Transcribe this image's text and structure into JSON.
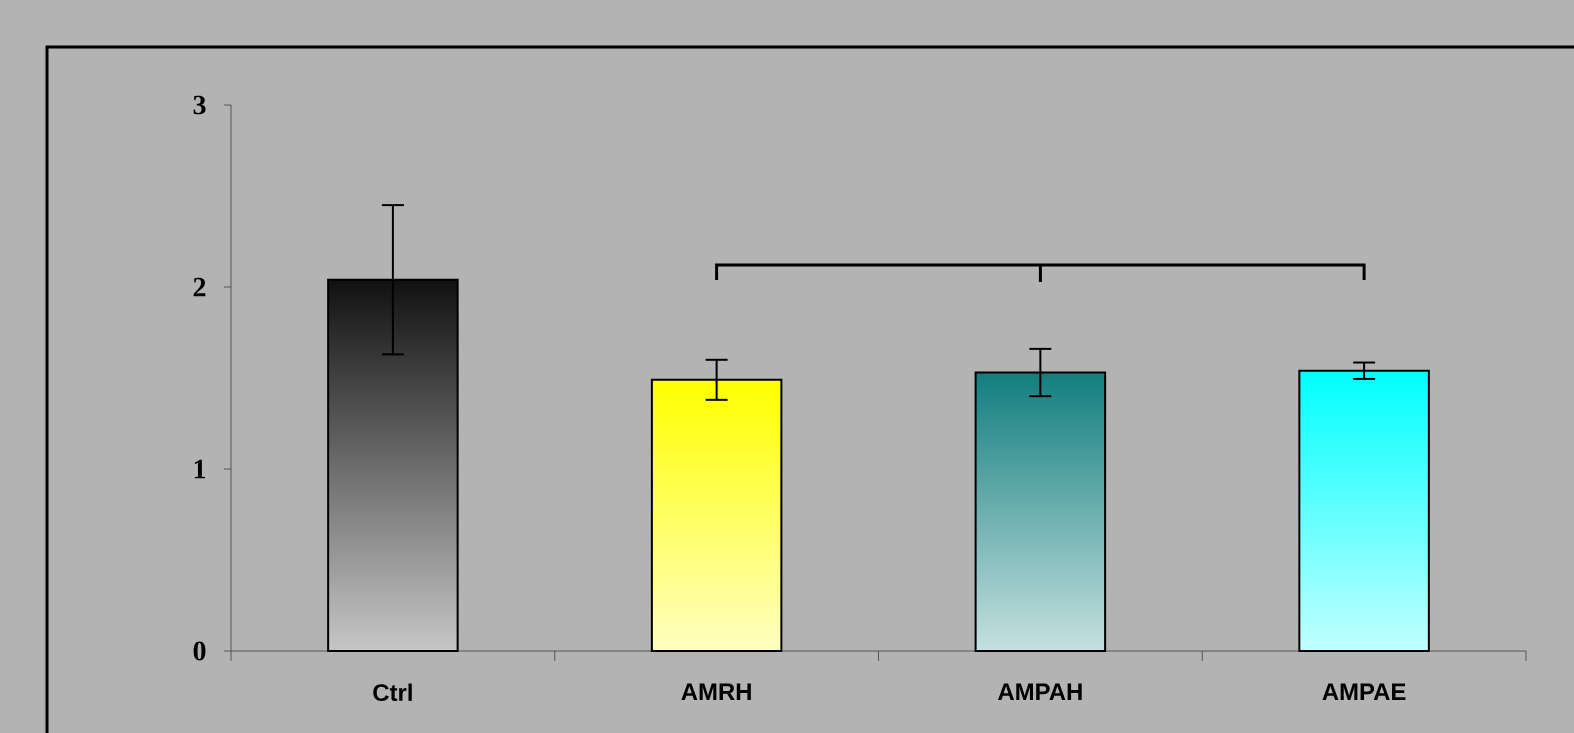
{
  "chart_data": {
    "type": "bar",
    "categories": [
      "Ctrl",
      "AMRH",
      "AMPAH",
      "AMPAE"
    ],
    "values": [
      2.04,
      1.49,
      1.53,
      1.54
    ],
    "errors": [
      0.41,
      0.11,
      0.13,
      0.045
    ],
    "colors": [
      "#111111",
      "#ffff00",
      "#127e7e",
      "#00ffff"
    ],
    "ylim": [
      0,
      3
    ],
    "yticks": [
      0,
      1,
      2,
      3
    ]
  }
}
